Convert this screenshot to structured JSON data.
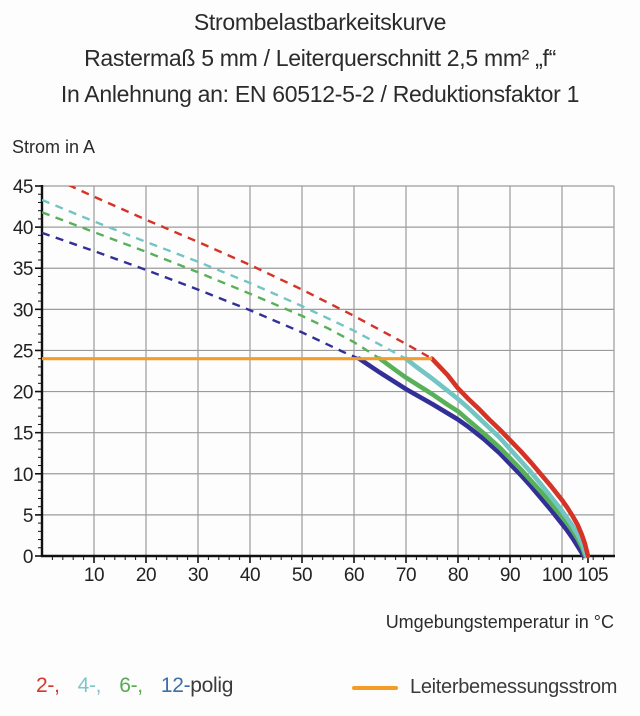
{
  "page": {
    "background": "#fdfdfd"
  },
  "title": {
    "line1": "Strombelastbarkeitskurve",
    "line2": "Rastermaß 5 mm / Leiterquerschnitt 2,5 mm² „f“",
    "line3": "In Anlehnung an: EN 60512-5-2 / Reduktionsfaktor 1"
  },
  "axis_labels": {
    "y": "Strom in A",
    "x": "Umgebungstemperatur in °C"
  },
  "legend": {
    "pole_items": [
      {
        "label": "2-,",
        "color": "#d2382c"
      },
      {
        "label": "4-,",
        "color": "#7fc5c9"
      },
      {
        "label": "6-,",
        "color": "#57aa52"
      },
      {
        "label": "12-",
        "color": "#3e6fa6"
      }
    ],
    "pole_suffix": "polig",
    "rated_label": "Leiterbemessungsstrom",
    "rated_color": "#f49b28"
  },
  "chart_data": {
    "type": "line",
    "title": "Strombelastbarkeitskurve",
    "subtitle": "Rastermaß 5 mm / Leiterquerschnitt 2,5 mm² „f“ / In Anlehnung an: EN 60512-5-2 / Reduktionsfaktor 1",
    "xlabel": "Umgebungstemperatur in °C",
    "ylabel": "Strom in A",
    "xlim": [
      0,
      110
    ],
    "ylim": [
      0,
      45
    ],
    "x_major_ticks": [
      10,
      20,
      30,
      40,
      50,
      60,
      70,
      80,
      90,
      100,
      105
    ],
    "x_minor_step": 2,
    "y_major_ticks": [
      0,
      5,
      10,
      15,
      20,
      25,
      30,
      35,
      40,
      45
    ],
    "y_minor_step": 1,
    "grid": {
      "x_step": 10,
      "y_step": 5,
      "color": "#9b9b9b",
      "on": true
    },
    "rated_current_line": {
      "label": "Leiterbemessungsstrom",
      "value": 24,
      "x_start": 0,
      "x_end": 75,
      "color": "#f49b28"
    },
    "series": [
      {
        "name": "12-polig",
        "color": "#322f97",
        "dashed_points": [
          [
            0,
            39.3
          ],
          [
            10,
            37.1
          ],
          [
            20,
            34.8
          ],
          [
            30,
            32.4
          ],
          [
            40,
            29.9
          ],
          [
            50,
            27.2
          ],
          [
            55,
            25.7
          ],
          [
            58,
            24.8
          ],
          [
            61,
            24
          ]
        ],
        "solid_points": [
          [
            61,
            24
          ],
          [
            65,
            22.3
          ],
          [
            70,
            20.3
          ],
          [
            75,
            18.5
          ],
          [
            80,
            16.6
          ],
          [
            82,
            15.7
          ],
          [
            85,
            14.2
          ],
          [
            88,
            12.5
          ],
          [
            90,
            11.2
          ],
          [
            92,
            9.9
          ],
          [
            94,
            8.5
          ],
          [
            96,
            7.0
          ],
          [
            98,
            5.5
          ],
          [
            100,
            3.9
          ],
          [
            101,
            3.1
          ],
          [
            102,
            2.2
          ],
          [
            103,
            1.2
          ],
          [
            104.2,
            0
          ]
        ]
      },
      {
        "name": "6-polig",
        "color": "#58b158",
        "dashed_points": [
          [
            0,
            41.8
          ],
          [
            10,
            39.4
          ],
          [
            20,
            37.0
          ],
          [
            30,
            34.5
          ],
          [
            40,
            31.9
          ],
          [
            50,
            29.2
          ],
          [
            55,
            27.7
          ],
          [
            60,
            26.0
          ],
          [
            65,
            24
          ]
        ],
        "solid_points": [
          [
            65,
            24
          ],
          [
            68,
            22.6
          ],
          [
            70,
            21.7
          ],
          [
            73,
            20.5
          ],
          [
            75,
            19.7
          ],
          [
            78,
            18.4
          ],
          [
            80,
            17.6
          ],
          [
            82,
            16.5
          ],
          [
            85,
            14.9
          ],
          [
            88,
            13.2
          ],
          [
            90,
            11.9
          ],
          [
            92,
            10.6
          ],
          [
            94,
            9.2
          ],
          [
            96,
            7.8
          ],
          [
            98,
            6.3
          ],
          [
            100,
            4.8
          ],
          [
            101,
            4.0
          ],
          [
            102,
            3.1
          ],
          [
            103,
            2.1
          ],
          [
            103.9,
            1.0
          ],
          [
            104.5,
            0
          ]
        ]
      },
      {
        "name": "4-polig",
        "color": "#72c5c3",
        "dashed_points": [
          [
            0,
            43.3
          ],
          [
            10,
            40.7
          ],
          [
            20,
            38.2
          ],
          [
            30,
            35.8
          ],
          [
            40,
            33.2
          ],
          [
            50,
            30.4
          ],
          [
            60,
            27.4
          ],
          [
            65,
            25.7
          ],
          [
            70,
            24
          ]
        ],
        "solid_points": [
          [
            70,
            24
          ],
          [
            72,
            23.0
          ],
          [
            75,
            21.6
          ],
          [
            78,
            20.1
          ],
          [
            80,
            19.1
          ],
          [
            82,
            18.0
          ],
          [
            85,
            16.2
          ],
          [
            88,
            14.4
          ],
          [
            90,
            13.0
          ],
          [
            92,
            11.6
          ],
          [
            94,
            10.2
          ],
          [
            96,
            8.7
          ],
          [
            98,
            7.1
          ],
          [
            100,
            5.5
          ],
          [
            101,
            4.6
          ],
          [
            102,
            3.7
          ],
          [
            103,
            2.6
          ],
          [
            104,
            1.3
          ],
          [
            104.7,
            0
          ]
        ]
      },
      {
        "name": "2-polig",
        "color": "#d63327",
        "dashed_points": [
          [
            0,
            46.6
          ],
          [
            10,
            43.7
          ],
          [
            20,
            40.9
          ],
          [
            30,
            38.2
          ],
          [
            40,
            35.4
          ],
          [
            50,
            32.4
          ],
          [
            60,
            29.2
          ],
          [
            65,
            27.5
          ],
          [
            70,
            25.8
          ],
          [
            75,
            24
          ]
        ],
        "solid_points": [
          [
            75,
            24
          ],
          [
            78,
            22.0
          ],
          [
            80,
            20.4
          ],
          [
            82,
            19.1
          ],
          [
            84,
            17.9
          ],
          [
            86,
            16.6
          ],
          [
            88,
            15.4
          ],
          [
            90,
            14.1
          ],
          [
            92,
            12.8
          ],
          [
            94,
            11.4
          ],
          [
            96,
            9.9
          ],
          [
            98,
            8.4
          ],
          [
            100,
            6.8
          ],
          [
            101,
            5.9
          ],
          [
            102,
            4.9
          ],
          [
            103,
            3.8
          ],
          [
            103.8,
            2.6
          ],
          [
            104.4,
            1.5
          ],
          [
            105,
            0
          ]
        ]
      }
    ],
    "legend_position": "bottom"
  }
}
